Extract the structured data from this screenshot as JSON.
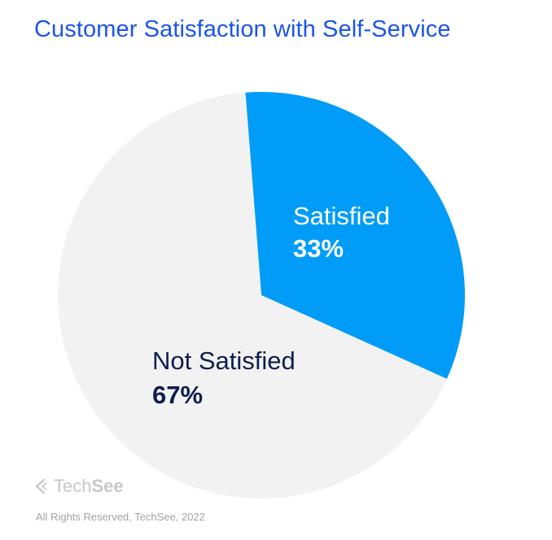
{
  "chart_data": {
    "type": "pie",
    "title": "Customer Satisfaction with Self-Service",
    "slices": [
      {
        "label": "Satisfied",
        "value": 33,
        "display": "33%",
        "color": "#009cf7",
        "text_color": "#ffffff",
        "value_color": "#ffffff"
      },
      {
        "label": "Not Satisfied",
        "value": 67,
        "display": "67%",
        "color": "#f2f2f2",
        "text_color": "#0e1e4e",
        "value_color": "#0e1e4e"
      }
    ],
    "title_color": "#1a56e8"
  },
  "branding": {
    "logo_part1": "Tech",
    "logo_part2": "See",
    "logo_icon": "chevron-left-icon",
    "copyright": "All Rights Reserved, TechSee, 2022"
  }
}
